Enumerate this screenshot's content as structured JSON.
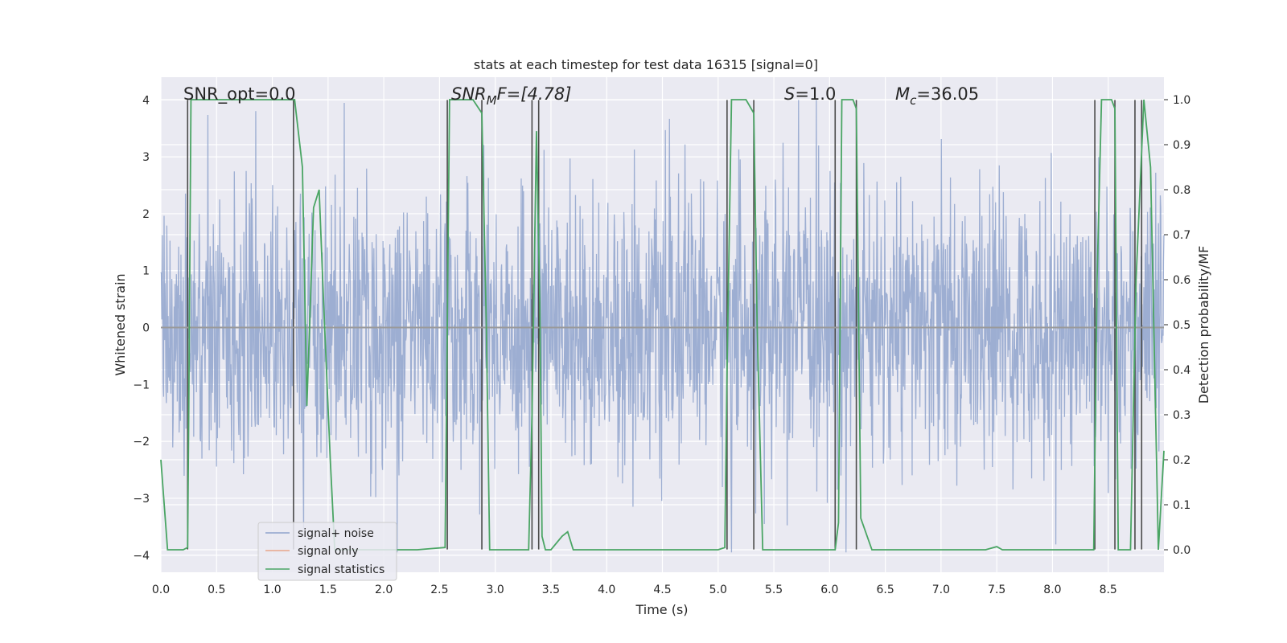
{
  "chart_data": {
    "type": "line",
    "title": "stats at each timestep for test data 16315 [signal=0]",
    "xlabel": "Time (s)",
    "ylabel_left": "Whitened strain",
    "ylabel_right": "Detection probability/MF",
    "xlim": [
      0.0,
      9.0
    ],
    "ylim_left": [
      -4.3,
      4.4
    ],
    "ylim_right": [
      -0.05,
      1.05
    ],
    "grid": true,
    "legend_position": "lower-left",
    "x_ticks": [
      "0.0",
      "0.5",
      "1.0",
      "1.5",
      "2.0",
      "2.5",
      "3.0",
      "3.5",
      "4.0",
      "4.5",
      "5.0",
      "5.5",
      "6.0",
      "6.5",
      "7.0",
      "7.5",
      "8.0",
      "8.5"
    ],
    "y_left_ticks": [
      "4",
      "3",
      "2",
      "1",
      "0",
      "−1",
      "−2",
      "−3",
      "−4"
    ],
    "y_right_ticks": [
      "1.0",
      "0.9",
      "0.8",
      "0.7",
      "0.6",
      "0.5",
      "0.4",
      "0.3",
      "0.2",
      "0.1",
      "0.0"
    ],
    "annotations": {
      "snr_opt": "SNR_opt=0.0",
      "snr_mf_base": "SNR",
      "snr_mf_sub": "M",
      "snr_mf_rest": "F=[4.78]",
      "s_label": "S",
      "s_value": "=1.0",
      "mc_base": "M",
      "mc_sub": "c",
      "mc_value": "=36.05"
    },
    "series": [
      {
        "name": "signal+ noise",
        "color": "#8fa3cc",
        "description": "whitened noise, approx. zero mean, amplitude about 1.8, spikes up to 4"
      },
      {
        "name": "signal only",
        "color": "#e8a58a",
        "values": "flat at 0"
      },
      {
        "name": "signal statistics",
        "color": "#4aa564",
        "axis": "right",
        "x": [
          0.0,
          0.06,
          0.15,
          0.2,
          0.24,
          0.25,
          0.27,
          0.3,
          0.35,
          1.0,
          1.2,
          1.27,
          1.31,
          1.37,
          1.42,
          1.46,
          1.52,
          1.56,
          1.7,
          2.0,
          2.3,
          2.55,
          2.57,
          2.59,
          2.62,
          2.8,
          2.88,
          2.92,
          2.95,
          3.0,
          3.1,
          3.3,
          3.33,
          3.37,
          3.4,
          3.42,
          3.45,
          3.5,
          3.6,
          3.65,
          3.7,
          3.75,
          3.8,
          4.0,
          5.0,
          5.06,
          5.08,
          5.12,
          5.25,
          5.32,
          5.35,
          5.4,
          5.6,
          5.8,
          6.05,
          6.08,
          6.11,
          6.21,
          6.24,
          6.28,
          6.38,
          6.5,
          7.0,
          7.4,
          7.5,
          7.55,
          7.6,
          8.0,
          8.37,
          8.4,
          8.44,
          8.53,
          8.56,
          8.59,
          8.62,
          8.66,
          8.7,
          8.75,
          8.82,
          8.88,
          8.95,
          9.0
        ],
        "values": [
          0.2,
          0.0,
          0.0,
          0.0,
          0.005,
          0.3,
          1.0,
          1.0,
          1.0,
          1.0,
          1.0,
          0.85,
          0.32,
          0.76,
          0.8,
          0.55,
          0.2,
          0.0,
          0.0,
          0.0,
          0.0,
          0.005,
          0.5,
          1.0,
          1.0,
          1.0,
          0.97,
          0.5,
          0.0,
          0.0,
          0.0,
          0.0,
          0.3,
          0.93,
          0.55,
          0.03,
          0.0,
          0.0,
          0.03,
          0.04,
          0.0,
          0.0,
          0.0,
          0.0,
          0.0,
          0.005,
          0.4,
          1.0,
          1.0,
          0.97,
          0.5,
          0.0,
          0.0,
          0.0,
          0.0,
          0.06,
          1.0,
          1.0,
          0.98,
          0.07,
          0.0,
          0.0,
          0.0,
          0.0,
          0.007,
          0.0,
          0.0,
          0.0,
          0.0,
          0.6,
          1.0,
          1.0,
          0.98,
          0.0,
          0.0,
          0.0,
          0.0,
          0.6,
          1.0,
          0.85,
          0.0,
          0.22
        ]
      }
    ],
    "vertical_lines": [
      0.24,
      1.19,
      2.57,
      2.88,
      3.33,
      3.39,
      5.08,
      5.32,
      6.05,
      6.24,
      8.38,
      8.56,
      8.74,
      8.8
    ]
  }
}
